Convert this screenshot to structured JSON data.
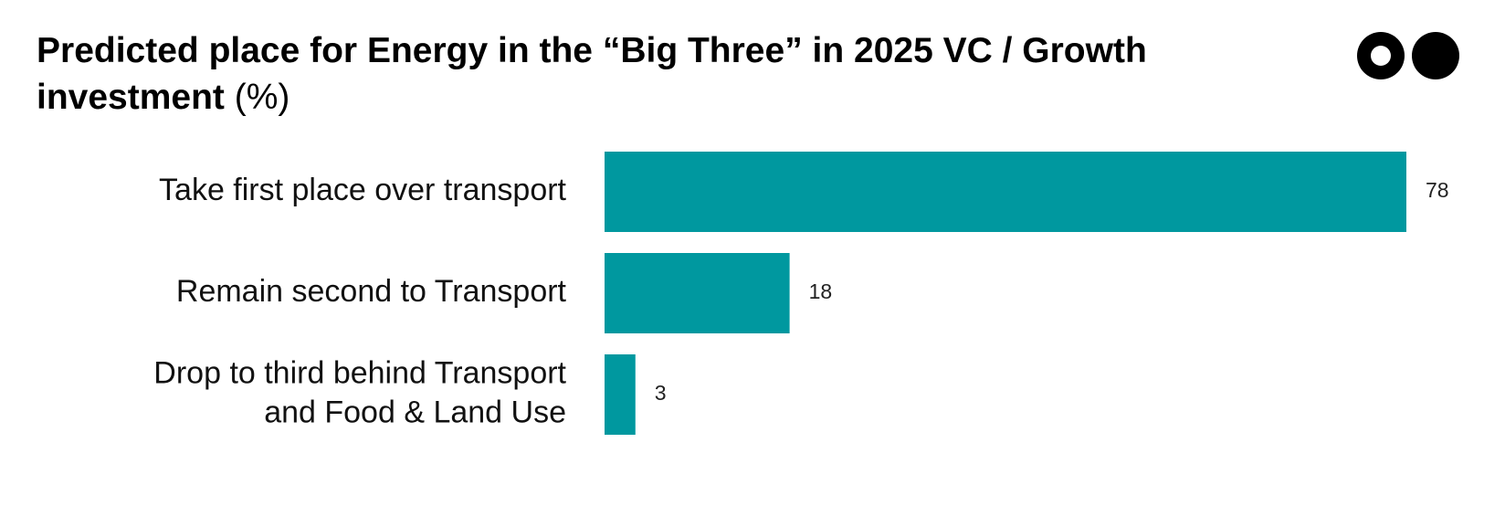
{
  "title": {
    "main": "Predicted place for Energy in the “Big Three” in 2025 VC / Growth investment",
    "unit": "(%)"
  },
  "logo": {
    "icon": "two-dots-logo-icon"
  },
  "colors": {
    "bar": "#00989f",
    "text": "#000000"
  },
  "chart_data": {
    "type": "bar",
    "orientation": "horizontal",
    "title": "Predicted place for Energy in the “Big Three” in 2025 VC / Growth investment (%)",
    "categories": [
      [
        "Take first place over transport"
      ],
      [
        "Remain second to Transport"
      ],
      [
        "Drop to third behind Transport",
        "and Food & Land Use"
      ]
    ],
    "values": [
      78,
      18,
      3
    ],
    "xlim": [
      0,
      78
    ],
    "grid": false,
    "legend": "none"
  }
}
